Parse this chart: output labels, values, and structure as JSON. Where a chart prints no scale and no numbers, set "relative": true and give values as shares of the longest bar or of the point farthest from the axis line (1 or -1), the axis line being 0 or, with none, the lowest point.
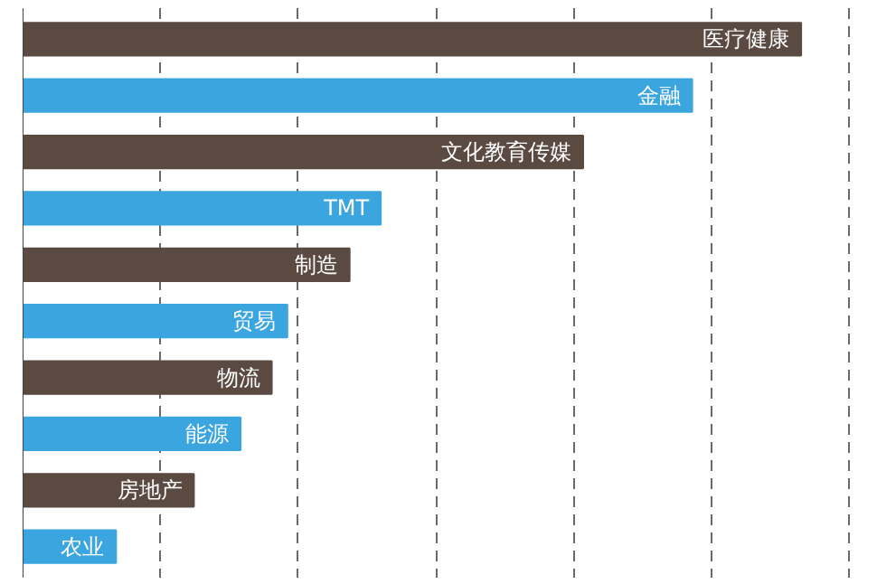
{
  "chart_data": {
    "type": "bar",
    "orientation": "horizontal",
    "relative": true,
    "grid": "x",
    "categories": [
      "医疗健康",
      "金融",
      "文化教育传媒",
      "TMT",
      "制造",
      "贸易",
      "物流",
      "能源",
      "房地产",
      "农业"
    ],
    "values": [
      1,
      0.86,
      0.72,
      0.46,
      0.42,
      0.34,
      0.32,
      0.28,
      0.22,
      0.12
    ],
    "colors": [
      "#5b4a42",
      "#3ba5df",
      "#5b4a42",
      "#3ba5df",
      "#5b4a42",
      "#3ba5df",
      "#5b4a42",
      "#3ba5df",
      "#5b4a42",
      "#3ba5df"
    ]
  }
}
